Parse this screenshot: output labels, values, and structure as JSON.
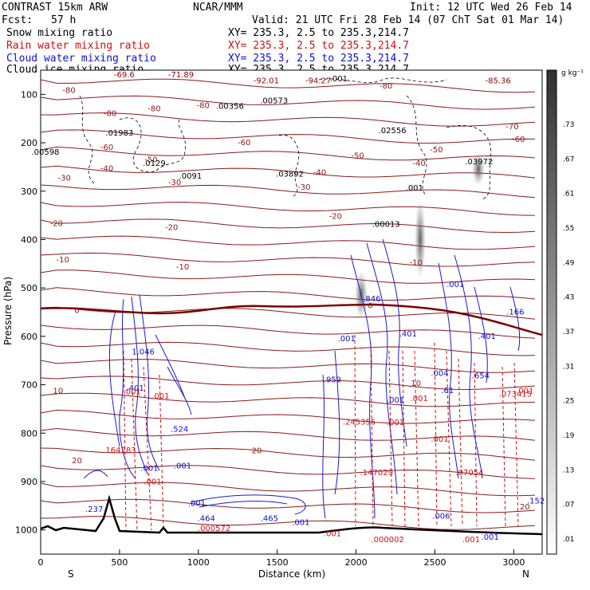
{
  "header": {
    "model": "CONTRAST 15km ARW",
    "center": "NCAR/MMM",
    "init": "Init: 12 UTC Wed 26 Feb 14",
    "fcst_label": "Fcst:",
    "fcst_value": "57 h",
    "valid": "Valid: 21 UTC Fri 28 Feb 14 (07 ChT Sat 01 Mar 14)"
  },
  "fields": [
    {
      "name": "Snow mixing ratio",
      "xy": "XY= 235.3,  2.5 to 235.3,214.7",
      "color": "#000000"
    },
    {
      "name": "Rain water mixing ratio",
      "xy": "XY= 235.3,  2.5 to 235.3,214.7",
      "color": "#d01010"
    },
    {
      "name": "Cloud water mixing ratio",
      "xy": "XY= 235.3,  2.5 to 235.3,214.7",
      "color": "#1010d0"
    },
    {
      "name": "Cloud ice mixing ratio",
      "xy": "XY= 235.3,  2.5 to 235.3,214.7",
      "color": "#000000"
    }
  ],
  "colorbar": {
    "unit": "g kg⁻¹",
    "labels": [
      ".73",
      ".67",
      ".61",
      ".55",
      ".49",
      ".43",
      ".37",
      ".31",
      ".25",
      ".19",
      ".13",
      ".07",
      ".01"
    ]
  },
  "chart_data": {
    "type": "contour-cross-section",
    "xlabel": "Distance (km)",
    "ylabel": "Pressure (hPa)",
    "xlim": [
      0,
      3180
    ],
    "ylim": [
      1050,
      50
    ],
    "x_ticks": [
      "0",
      "500",
      "1000",
      "1500",
      "2000",
      "2500",
      "3000"
    ],
    "y_ticks": [
      "100",
      "200",
      "300",
      "400",
      "500",
      "600",
      "700",
      "800",
      "900",
      "1000"
    ],
    "x_start_label": "S",
    "x_end_label": "N",
    "temperature_contours": [
      {
        "label": "-80",
        "x": 180,
        "p": 97
      },
      {
        "label": "-80",
        "x": 440,
        "p": 145
      },
      {
        "label": "-80",
        "x": 720,
        "p": 135
      },
      {
        "label": "-80",
        "x": 1030,
        "p": 128
      },
      {
        "label": "-80",
        "x": 2190,
        "p": 88
      },
      {
        "label": "-70",
        "x": 2990,
        "p": 172
      },
      {
        "label": "-60",
        "x": 420,
        "p": 215
      },
      {
        "label": "-60",
        "x": 1290,
        "p": 205
      },
      {
        "label": "-60",
        "x": 3030,
        "p": 198
      },
      {
        "label": "-50",
        "x": 700,
        "p": 240
      },
      {
        "label": "-50",
        "x": 2010,
        "p": 232
      },
      {
        "label": "-50",
        "x": 2510,
        "p": 220
      },
      {
        "label": "-40",
        "x": 420,
        "p": 258
      },
      {
        "label": "-40",
        "x": 1770,
        "p": 267
      },
      {
        "label": "-40",
        "x": 2400,
        "p": 248
      },
      {
        "label": "-30",
        "x": 150,
        "p": 278
      },
      {
        "label": "-30",
        "x": 850,
        "p": 287
      },
      {
        "label": "-30",
        "x": 1670,
        "p": 297
      },
      {
        "label": "-20",
        "x": 100,
        "p": 372
      },
      {
        "label": "-20",
        "x": 830,
        "p": 380
      },
      {
        "label": "-20",
        "x": 1870,
        "p": 357
      },
      {
        "label": "-10",
        "x": 140,
        "p": 447
      },
      {
        "label": "-10",
        "x": 900,
        "p": 462
      },
      {
        "label": "-10",
        "x": 2380,
        "p": 453
      },
      {
        "label": "0",
        "x": 230,
        "p": 552
      },
      {
        "label": "0",
        "x": 2090,
        "p": 542
      },
      {
        "label": "10",
        "x": 110,
        "p": 718
      },
      {
        "label": "10",
        "x": 2380,
        "p": 702
      },
      {
        "label": "20",
        "x": 230,
        "p": 862
      },
      {
        "label": "20",
        "x": 1370,
        "p": 842
      },
      {
        "label": "20",
        "x": 3070,
        "p": 958
      }
    ],
    "maxima": [
      {
        "label": "-69.6",
        "x": 530,
        "p": 65,
        "color": "#900000"
      },
      {
        "label": "-71.89",
        "x": 890,
        "p": 65,
        "color": "#900000"
      },
      {
        "label": "-92.01",
        "x": 1430,
        "p": 77,
        "color": "#900000"
      },
      {
        "label": "-94.27",
        "x": 1760,
        "p": 77,
        "color": "#900000"
      },
      {
        "label": "-85.36",
        "x": 2900,
        "p": 77,
        "color": "#900000"
      },
      {
        "label": ".01983",
        "x": 500,
        "p": 185,
        "color": "#000000"
      },
      {
        "label": ".00598",
        "x": 30,
        "p": 225,
        "color": "#000000"
      },
      {
        "label": ".0129",
        "x": 720,
        "p": 248,
        "color": "#000000"
      },
      {
        "label": ".0091",
        "x": 950,
        "p": 274,
        "color": "#000000"
      },
      {
        "label": ".00356",
        "x": 1200,
        "p": 130,
        "color": "#000000"
      },
      {
        "label": ".00573",
        "x": 1480,
        "p": 118,
        "color": "#000000"
      },
      {
        "label": ".001",
        "x": 1890,
        "p": 73,
        "color": "#000000"
      },
      {
        "label": ".02556",
        "x": 2230,
        "p": 180,
        "color": "#000000"
      },
      {
        "label": ".03972",
        "x": 2780,
        "p": 244,
        "color": "#000000"
      },
      {
        "label": ".03892",
        "x": 1580,
        "p": 270,
        "color": "#000000"
      },
      {
        "label": ".001",
        "x": 2370,
        "p": 299,
        "color": "#000000"
      },
      {
        "label": ".00013",
        "x": 2190,
        "p": 374,
        "color": "#000000"
      },
      {
        "label": "1.046",
        "x": 650,
        "p": 637,
        "color": "#1010d0"
      },
      {
        "label": ".401",
        "x": 600,
        "p": 712,
        "color": "#1010d0"
      },
      {
        "label": ".524",
        "x": 880,
        "p": 797,
        "color": "#1010d0"
      },
      {
        "label": ".001",
        "x": 690,
        "p": 878,
        "color": "#1010d0"
      },
      {
        "label": ".001",
        "x": 900,
        "p": 873,
        "color": "#1010d0"
      },
      {
        "label": ".237",
        "x": 340,
        "p": 963,
        "color": "#1010d0"
      },
      {
        "label": ".001",
        "x": 990,
        "p": 950,
        "color": "#1010d0"
      },
      {
        "label": ".464",
        "x": 1050,
        "p": 982,
        "color": "#1010d0"
      },
      {
        "label": ".465",
        "x": 1450,
        "p": 982,
        "color": "#1010d0"
      },
      {
        "label": ".001",
        "x": 1650,
        "p": 990,
        "color": "#1010d0"
      },
      {
        "label": ".959",
        "x": 1850,
        "p": 695,
        "color": "#1010d0"
      },
      {
        "label": ".001",
        "x": 1940,
        "p": 610,
        "color": "#1010d0"
      },
      {
        "label": ".846",
        "x": 2100,
        "p": 528,
        "color": "#1010d0"
      },
      {
        "label": ".401",
        "x": 2330,
        "p": 600,
        "color": "#1010d0"
      },
      {
        "label": ".001",
        "x": 2630,
        "p": 498,
        "color": "#1010d0"
      },
      {
        "label": ".004",
        "x": 2530,
        "p": 682,
        "color": "#1010d0"
      },
      {
        "label": ".001",
        "x": 2250,
        "p": 737,
        "color": "#1010d0"
      },
      {
        "label": ".61",
        "x": 2580,
        "p": 717,
        "color": "#1010d0"
      },
      {
        "label": ".401",
        "x": 2830,
        "p": 605,
        "color": "#1010d0"
      },
      {
        "label": ".654",
        "x": 2790,
        "p": 687,
        "color": "#1010d0"
      },
      {
        "label": ".166",
        "x": 3010,
        "p": 555,
        "color": "#1010d0"
      },
      {
        "label": ".006",
        "x": 2540,
        "p": 977,
        "color": "#1010d0"
      },
      {
        "label": ".152",
        "x": 3140,
        "p": 945,
        "color": "#1010d0"
      },
      {
        "label": ".001",
        "x": 2850,
        "p": 1020,
        "color": "#1010d0"
      },
      {
        "label": ".164283",
        "x": 500,
        "p": 841,
        "color": "#d01010"
      },
      {
        "label": ".001",
        "x": 580,
        "p": 720,
        "color": "#d01010"
      },
      {
        "label": ".001",
        "x": 760,
        "p": 729,
        "color": "#d01010"
      },
      {
        "label": ".001",
        "x": 710,
        "p": 906,
        "color": "#d01010"
      },
      {
        "label": ".000572",
        "x": 1100,
        "p": 1002,
        "color": "#d01010"
      },
      {
        "label": ".001",
        "x": 1850,
        "p": 1013,
        "color": "#d01010"
      },
      {
        "label": ".245355",
        "x": 2020,
        "p": 782,
        "color": "#d01010"
      },
      {
        "label": ".001",
        "x": 2250,
        "p": 783,
        "color": "#d01010"
      },
      {
        "label": ".147029",
        "x": 2130,
        "p": 887,
        "color": "#d01010"
      },
      {
        "label": ".001",
        "x": 2400,
        "p": 734,
        "color": "#d01010"
      },
      {
        "label": ".001",
        "x": 2530,
        "p": 818,
        "color": "#d01010"
      },
      {
        "label": ".07054",
        "x": 2720,
        "p": 887,
        "color": "#d01010"
      },
      {
        "label": ".073415",
        "x": 3010,
        "p": 725,
        "color": "#d01010"
      },
      {
        "label": ".001",
        "x": 3070,
        "p": 718,
        "color": "#d01010"
      },
      {
        "label": ".000002",
        "x": 2200,
        "p": 1025,
        "color": "#d01010"
      },
      {
        "label": ".001",
        "x": 2730,
        "p": 1025,
        "color": "#d01010"
      }
    ]
  }
}
